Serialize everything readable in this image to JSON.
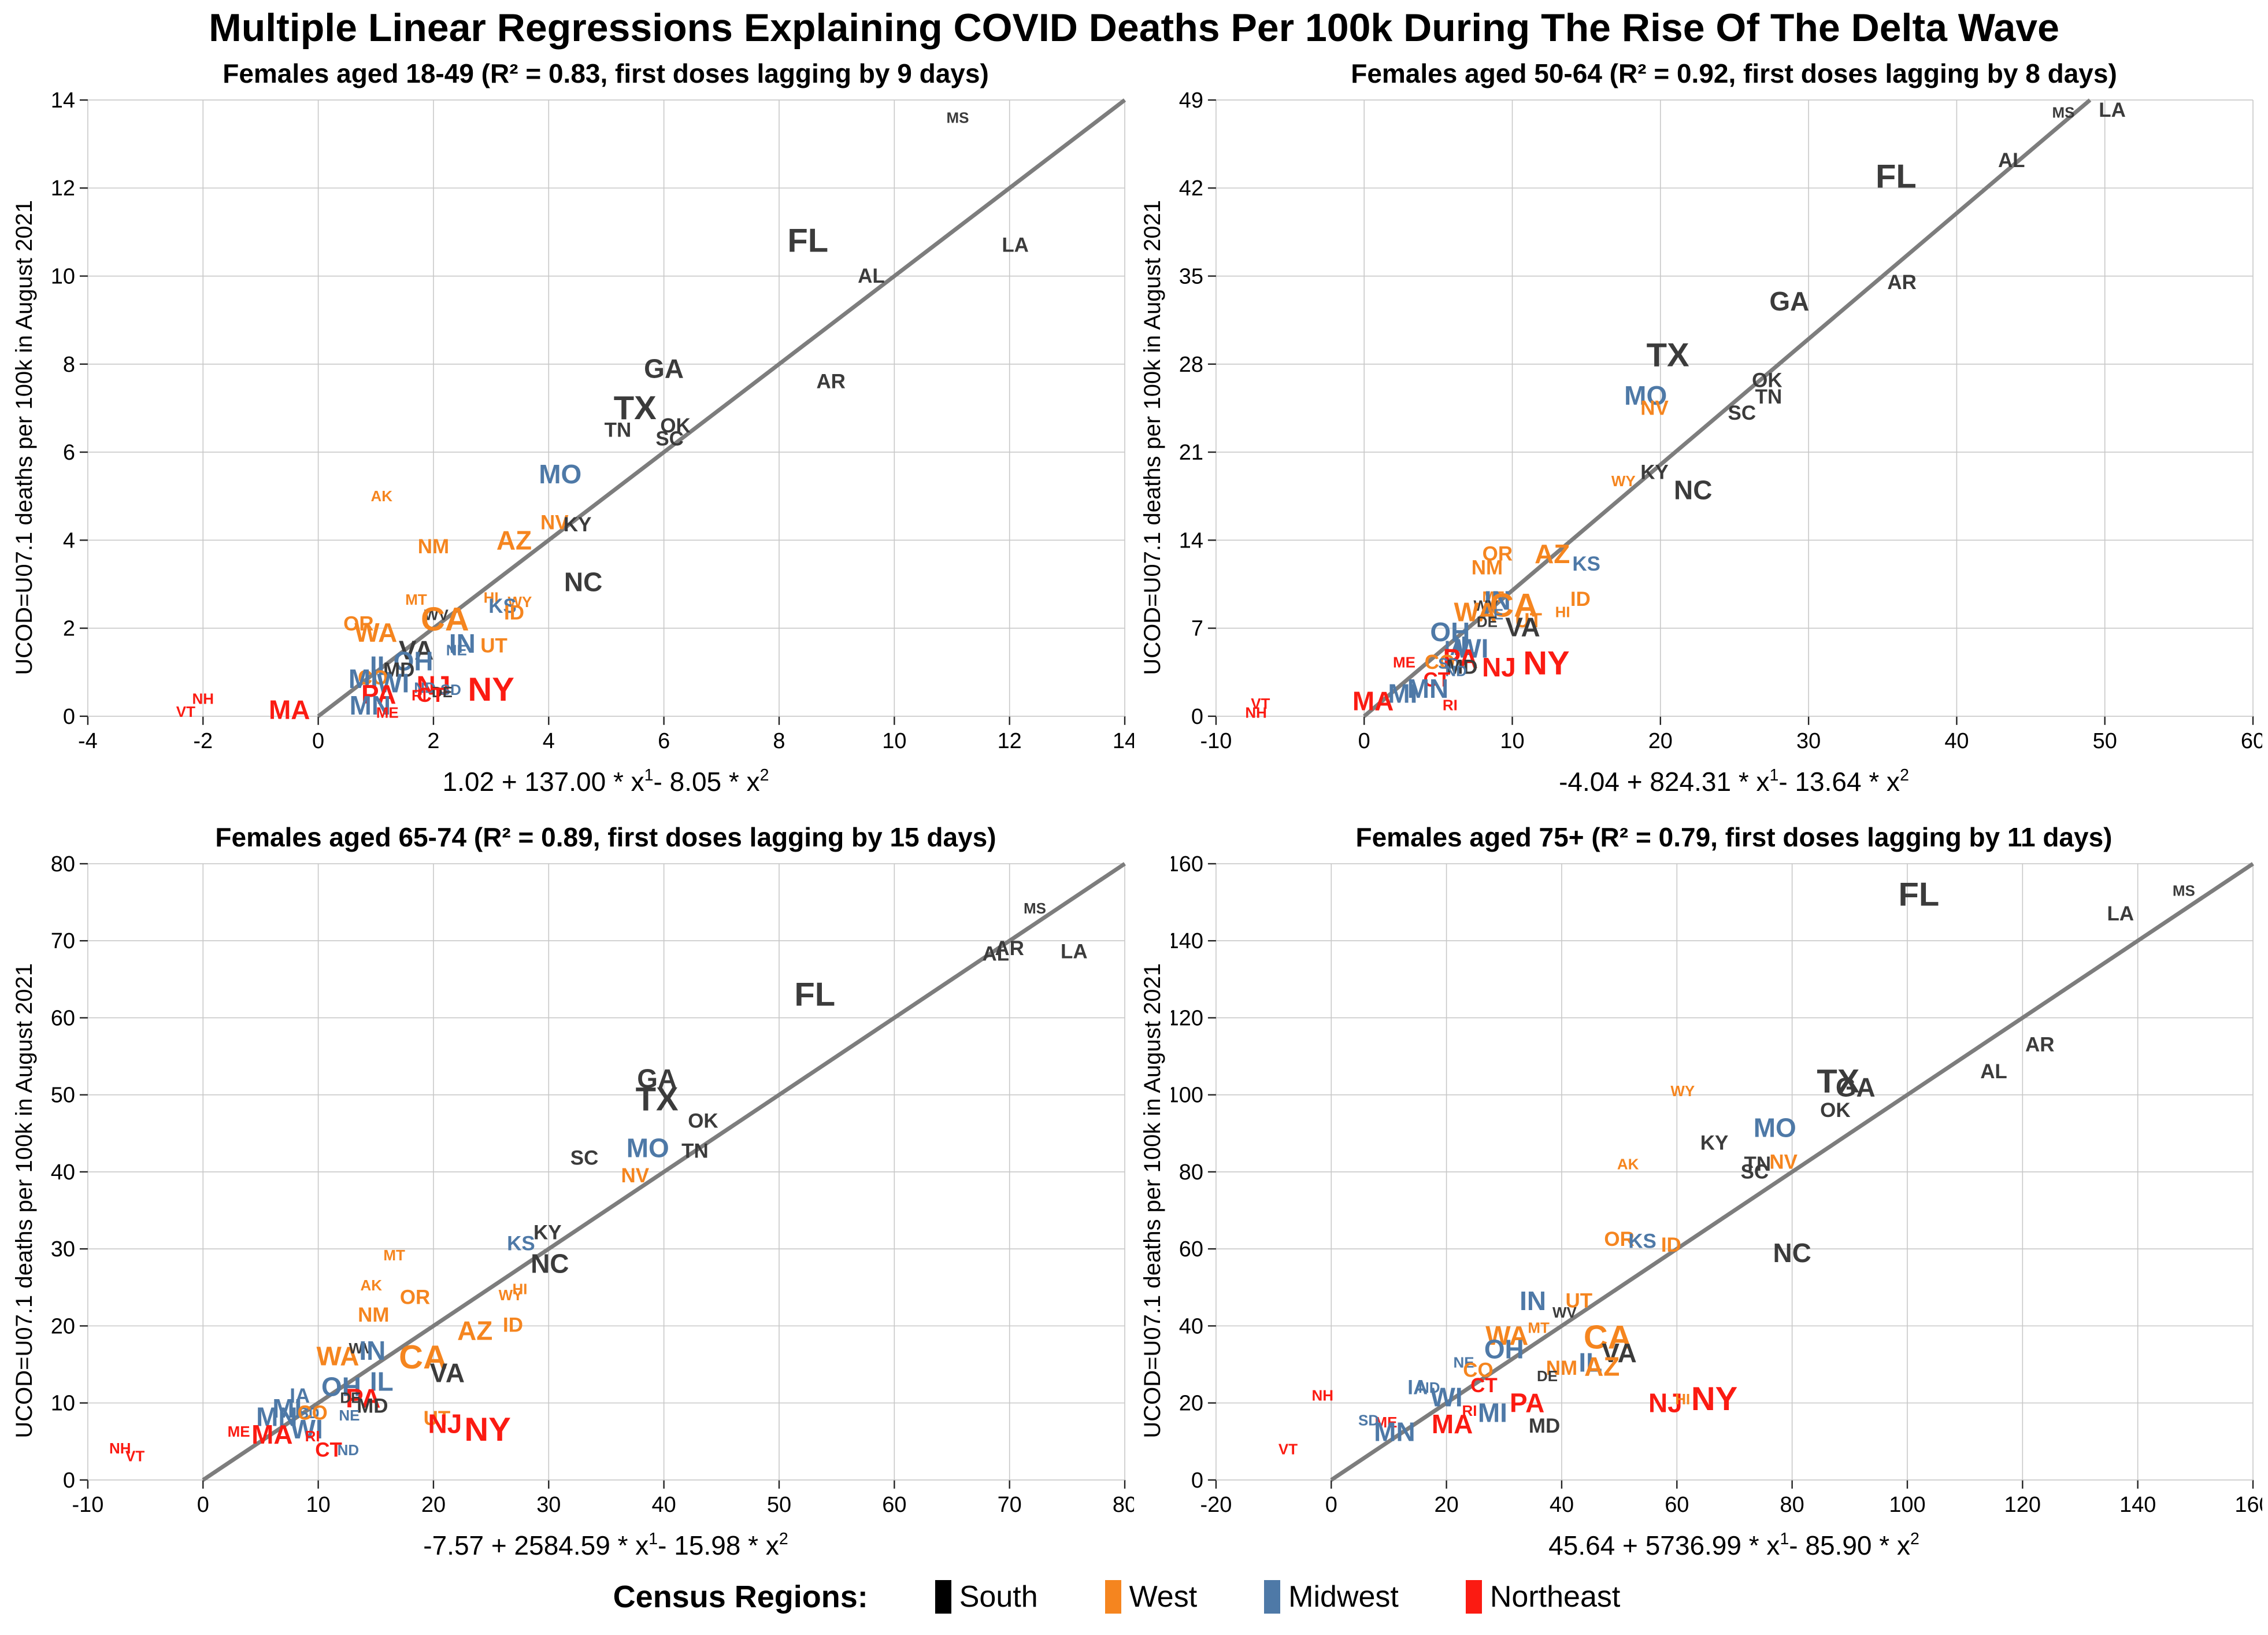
{
  "page_title": "Multiple Linear Regressions Explaining COVID Deaths Per 100k During The Rise Of The Delta Wave",
  "y_axis_label": "UCOD=U07.1 deaths per 100k in August 2021",
  "legend": {
    "title": "Census Regions:",
    "items": [
      {
        "label": "South",
        "color": "#000000"
      },
      {
        "label": "West",
        "color": "#f5851f"
      },
      {
        "label": "Midwest",
        "color": "#4e79a7"
      },
      {
        "label": "Northeast",
        "color": "#fb1b12"
      }
    ]
  },
  "region_colors": {
    "South": "#3b3b3b",
    "West": "#f5851f",
    "Midwest": "#4e79a7",
    "Northeast": "#fb1b12"
  },
  "state_regions": {
    "AL": "South",
    "AR": "South",
    "DE": "South",
    "FL": "South",
    "GA": "South",
    "KY": "South",
    "LA": "South",
    "MD": "South",
    "MS": "South",
    "NC": "South",
    "OK": "South",
    "SC": "South",
    "TN": "South",
    "TX": "South",
    "VA": "South",
    "WV": "South",
    "AK": "West",
    "AZ": "West",
    "CA": "West",
    "CO": "West",
    "HI": "West",
    "ID": "West",
    "MT": "West",
    "NM": "West",
    "NV": "West",
    "OR": "West",
    "UT": "West",
    "WA": "West",
    "WY": "West",
    "IA": "Midwest",
    "IL": "Midwest",
    "IN": "Midwest",
    "KS": "Midwest",
    "MI": "Midwest",
    "MN": "Midwest",
    "MO": "Midwest",
    "ND": "Midwest",
    "NE": "Midwest",
    "OH": "Midwest",
    "SD": "Midwest",
    "WI": "Midwest",
    "CT": "Northeast",
    "MA": "Northeast",
    "ME": "Northeast",
    "NH": "Northeast",
    "NJ": "Northeast",
    "NY": "Northeast",
    "PA": "Northeast",
    "RI": "Northeast",
    "VT": "Northeast"
  },
  "state_sizes": {
    "CA": 4,
    "TX": 4,
    "FL": 4,
    "NY": 4,
    "PA": 3,
    "IL": 3,
    "OH": 3,
    "GA": 3,
    "NC": 3,
    "MI": 3,
    "NJ": 3,
    "VA": 3,
    "WA": 3,
    "AZ": 3,
    "MA": 3,
    "IN": 3,
    "MO": 3,
    "MN": 3,
    "WI": 3,
    "TN": 2,
    "MD": 2,
    "CO": 2,
    "SC": 2,
    "AL": 2,
    "LA": 2,
    "KY": 2,
    "OR": 2,
    "OK": 2,
    "CT": 2,
    "UT": 2,
    "NV": 2,
    "NM": 2,
    "KS": 2,
    "ID": 2,
    "AR": 2,
    "IA": 2,
    "MS": 1,
    "WV": 1,
    "NE": 1,
    "SD": 1,
    "ND": 1,
    "MT": 1,
    "WY": 1,
    "AK": 1,
    "HI": 1,
    "DE": 1,
    "RI": 1,
    "ME": 1,
    "NH": 1,
    "VT": 1
  },
  "chart_data": [
    {
      "type": "scatter",
      "title": "Females aged 18-49 (R² = 0.83, first doses lagging by 9 days)",
      "formula": {
        "p1": "1.02 + 137.00 * x",
        "s1": "1",
        "p2": " - 8.05 * x",
        "s2": "2"
      },
      "xlim": [
        -4,
        14
      ],
      "ylim": [
        0,
        14
      ],
      "xticks": [
        -4,
        -2,
        0,
        2,
        4,
        6,
        8,
        10,
        12,
        14
      ],
      "yticks": [
        0,
        2,
        4,
        6,
        8,
        10,
        12,
        14
      ],
      "line": [
        [
          0,
          0
        ],
        [
          14,
          14
        ]
      ],
      "points": [
        [
          "MS",
          11.1,
          13.6
        ],
        [
          "FL",
          8.5,
          10.8
        ],
        [
          "LA",
          12.1,
          10.7
        ],
        [
          "AL",
          9.6,
          10.0
        ],
        [
          "GA",
          6.0,
          7.9
        ],
        [
          "AR",
          8.9,
          7.6
        ],
        [
          "TX",
          5.5,
          7.0
        ],
        [
          "TN",
          5.2,
          6.5
        ],
        [
          "OK",
          6.2,
          6.6
        ],
        [
          "SC",
          6.1,
          6.3
        ],
        [
          "MO",
          4.2,
          5.5
        ],
        [
          "AK",
          1.1,
          5.0
        ],
        [
          "NV",
          4.1,
          4.4
        ],
        [
          "KY",
          4.5,
          4.35
        ],
        [
          "AZ",
          3.4,
          4.0
        ],
        [
          "NM",
          2.0,
          3.85
        ],
        [
          "NC",
          4.6,
          3.05
        ],
        [
          "MT",
          1.7,
          2.65
        ],
        [
          "HI",
          3.0,
          2.7
        ],
        [
          "WY",
          3.5,
          2.6
        ],
        [
          "KS",
          3.2,
          2.5
        ],
        [
          "ID",
          3.4,
          2.35
        ],
        [
          "WV",
          2.05,
          2.3
        ],
        [
          "CA",
          2.2,
          2.2
        ],
        [
          "OR",
          0.7,
          2.1
        ],
        [
          "WA",
          1.0,
          1.9
        ],
        [
          "IN",
          2.5,
          1.65
        ],
        [
          "UT",
          3.05,
          1.6
        ],
        [
          "VA",
          1.7,
          1.5
        ],
        [
          "NE",
          2.4,
          1.5
        ],
        [
          "OH",
          1.65,
          1.25
        ],
        [
          "IL",
          1.1,
          1.15
        ],
        [
          "MD",
          1.4,
          1.05
        ],
        [
          "CO",
          0.95,
          0.87
        ],
        [
          "MI",
          0.78,
          0.85
        ],
        [
          "WI",
          1.3,
          0.75
        ],
        [
          "NJ",
          2.0,
          0.7
        ],
        [
          "ND",
          1.85,
          0.65
        ],
        [
          "SD",
          2.3,
          0.6
        ],
        [
          "NY",
          3.0,
          0.6
        ],
        [
          "DE",
          2.15,
          0.55
        ],
        [
          "PA",
          1.05,
          0.5
        ],
        [
          "CT",
          1.95,
          0.48
        ],
        [
          "RI",
          1.75,
          0.48
        ],
        [
          "MN",
          0.9,
          0.25
        ],
        [
          "MA",
          -0.5,
          0.15
        ],
        [
          "ME",
          1.2,
          0.08
        ],
        [
          "NH",
          -2.0,
          0.4
        ],
        [
          "VT",
          -2.3,
          0.1
        ]
      ]
    },
    {
      "type": "scatter",
      "title": "Females aged 50-64 (R² = 0.92, first doses lagging by 8 days)",
      "formula": {
        "p1": "-4.04 + 824.31 * x",
        "s1": "1",
        "p2": " - 13.64 * x",
        "s2": "2"
      },
      "xlim": [
        -10,
        60
      ],
      "ylim": [
        0,
        49
      ],
      "xticks": [
        -10,
        0,
        10,
        20,
        30,
        40,
        50,
        60
      ],
      "yticks": [
        0,
        7,
        14,
        21,
        28,
        35,
        42,
        49
      ],
      "line": [
        [
          0,
          0
        ],
        [
          49,
          49
        ]
      ],
      "points": [
        [
          "MS",
          47.2,
          48.0
        ],
        [
          "LA",
          50.5,
          48.2
        ],
        [
          "AL",
          43.7,
          44.2
        ],
        [
          "FL",
          35.9,
          42.9
        ],
        [
          "AR",
          36.3,
          34.5
        ],
        [
          "GA",
          28.7,
          33.0
        ],
        [
          "TX",
          20.5,
          28.7
        ],
        [
          "OK",
          27.2,
          26.7
        ],
        [
          "TN",
          27.3,
          25.4
        ],
        [
          "SC",
          25.5,
          24.1
        ],
        [
          "MO",
          19.0,
          25.5
        ],
        [
          "NV",
          19.6,
          24.5
        ],
        [
          "KY",
          19.6,
          19.4
        ],
        [
          "WY",
          17.5,
          18.7
        ],
        [
          "NC",
          22.2,
          18.0
        ],
        [
          "KS",
          15.0,
          12.1
        ],
        [
          "AZ",
          12.7,
          12.9
        ],
        [
          "OR",
          9.0,
          12.9
        ],
        [
          "NM",
          8.3,
          11.8
        ],
        [
          "ID",
          14.6,
          9.3
        ],
        [
          "HI",
          13.4,
          8.3
        ],
        [
          "MT",
          8.7,
          9.5
        ],
        [
          "IN",
          9.0,
          9.2
        ],
        [
          "WV",
          8.2,
          8.8
        ],
        [
          "CA",
          10.1,
          8.8
        ],
        [
          "NE",
          8.7,
          8.1
        ],
        [
          "WA",
          7.5,
          8.3
        ],
        [
          "DE",
          8.3,
          7.5
        ],
        [
          "UT",
          11.1,
          7.6
        ],
        [
          "VA",
          10.7,
          7.1
        ],
        [
          "OH",
          5.8,
          6.7
        ],
        [
          "IA",
          6.1,
          5.4
        ],
        [
          "IL",
          6.8,
          5.6
        ],
        [
          "WI",
          7.3,
          5.4
        ],
        [
          "PA",
          6.5,
          4.6
        ],
        [
          "CO",
          5.1,
          4.3
        ],
        [
          "SD",
          5.7,
          4.2
        ],
        [
          "MD",
          6.6,
          3.9
        ],
        [
          "ND",
          6.2,
          3.6
        ],
        [
          "CT",
          4.9,
          2.9
        ],
        [
          "NJ",
          9.1,
          3.9
        ],
        [
          "NY",
          12.3,
          4.2
        ],
        [
          "ME",
          2.7,
          4.3
        ],
        [
          "MI",
          2.6,
          1.8
        ],
        [
          "MN",
          4.3,
          2.2
        ],
        [
          "MA",
          0.6,
          1.2
        ],
        [
          "RI",
          5.8,
          0.9
        ],
        [
          "VT",
          -7.0,
          1.0
        ],
        [
          "NH",
          -7.3,
          0.3
        ]
      ]
    },
    {
      "type": "scatter",
      "title": "Females aged 65-74 (R² = 0.89, first doses lagging by 15 days)",
      "formula": {
        "p1": "-7.57 + 2584.59 * x",
        "s1": "1",
        "p2": " - 15.98 * x",
        "s2": "2"
      },
      "xlim": [
        -10,
        80
      ],
      "ylim": [
        0,
        80
      ],
      "xticks": [
        -10,
        0,
        10,
        20,
        30,
        40,
        50,
        60,
        70,
        80
      ],
      "yticks": [
        0,
        10,
        20,
        30,
        40,
        50,
        60,
        70,
        80
      ],
      "line": [
        [
          0,
          0
        ],
        [
          80,
          80
        ]
      ],
      "points": [
        [
          "MS",
          72.2,
          74.2
        ],
        [
          "AR",
          70.0,
          69.0
        ],
        [
          "AL",
          68.8,
          68.3
        ],
        [
          "LA",
          75.6,
          68.6
        ],
        [
          "FL",
          53.1,
          63.0
        ],
        [
          "GA",
          39.4,
          52.1
        ],
        [
          "TX",
          39.4,
          49.4
        ],
        [
          "OK",
          43.4,
          46.6
        ],
        [
          "MO",
          38.6,
          43.1
        ],
        [
          "TN",
          42.7,
          42.7
        ],
        [
          "SC",
          33.1,
          41.8
        ],
        [
          "NV",
          37.5,
          39.5
        ],
        [
          "KY",
          29.9,
          32.1
        ],
        [
          "KS",
          27.6,
          30.7
        ],
        [
          "NC",
          30.1,
          28.1
        ],
        [
          "MT",
          16.6,
          29.2
        ],
        [
          "AK",
          14.6,
          25.3
        ],
        [
          "HI",
          27.5,
          24.8
        ],
        [
          "WY",
          26.7,
          24.0
        ],
        [
          "OR",
          18.4,
          23.7
        ],
        [
          "NM",
          14.8,
          21.4
        ],
        [
          "ID",
          26.9,
          20.1
        ],
        [
          "AZ",
          23.6,
          19.4
        ],
        [
          "WA",
          11.7,
          16.1
        ],
        [
          "WV",
          13.7,
          17.1
        ],
        [
          "IN",
          14.7,
          16.8
        ],
        [
          "CA",
          19.1,
          15.9
        ],
        [
          "VA",
          21.2,
          13.9
        ],
        [
          "IL",
          15.5,
          12.8
        ],
        [
          "OH",
          12.0,
          12.1
        ],
        [
          "PA",
          13.9,
          10.6
        ],
        [
          "IA",
          8.4,
          10.9
        ],
        [
          "DE",
          12.8,
          10.7
        ],
        [
          "MD",
          14.7,
          9.6
        ],
        [
          "MI",
          7.3,
          9.3
        ],
        [
          "MN",
          6.4,
          8.2
        ],
        [
          "SD",
          9.2,
          8.7
        ],
        [
          "CO",
          9.5,
          8.7
        ],
        [
          "NE",
          12.7,
          8.4
        ],
        [
          "UT",
          20.3,
          8.0
        ],
        [
          "WI",
          9.0,
          6.6
        ],
        [
          "NJ",
          21.0,
          7.3
        ],
        [
          "NY",
          24.7,
          6.5
        ],
        [
          "MA",
          6.0,
          5.9
        ],
        [
          "ME",
          3.1,
          6.3
        ],
        [
          "RI",
          9.5,
          5.7
        ],
        [
          "CT",
          10.9,
          3.9
        ],
        [
          "ND",
          12.6,
          3.9
        ],
        [
          "NH",
          -7.2,
          4.1
        ],
        [
          "VT",
          -5.9,
          3.1
        ]
      ]
    },
    {
      "type": "scatter",
      "title": "Females aged 75+ (R² = 0.79, first doses lagging by 11 days)",
      "formula": {
        "p1": "45.64 + 5736.99 * x",
        "s1": "1",
        "p2": " - 85.90 * x",
        "s2": "2"
      },
      "xlim": [
        -20,
        160
      ],
      "ylim": [
        0,
        160
      ],
      "xticks": [
        -20,
        0,
        20,
        40,
        60,
        80,
        100,
        120,
        140,
        160
      ],
      "yticks": [
        0,
        20,
        40,
        60,
        80,
        100,
        120,
        140,
        160
      ],
      "line": [
        [
          0,
          0
        ],
        [
          160,
          160
        ]
      ],
      "points": [
        [
          "MS",
          148,
          153
        ],
        [
          "FL",
          102,
          152
        ],
        [
          "LA",
          137,
          147
        ],
        [
          "AR",
          123,
          113
        ],
        [
          "AL",
          115,
          106
        ],
        [
          "TX",
          88,
          103.5
        ],
        [
          "GA",
          91,
          102
        ],
        [
          "OK",
          87.5,
          96
        ],
        [
          "WY",
          61,
          101
        ],
        [
          "MO",
          77,
          91.5
        ],
        [
          "KY",
          66.5,
          87.5
        ],
        [
          "AK",
          51.5,
          82
        ],
        [
          "TN",
          74,
          82
        ],
        [
          "NV",
          78.5,
          82.5
        ],
        [
          "SC",
          73.5,
          80
        ],
        [
          "NC",
          80,
          59
        ],
        [
          "OR",
          50,
          62.5
        ],
        [
          "KS",
          54,
          62
        ],
        [
          "ID",
          59,
          61
        ],
        [
          "IN",
          35,
          46.5
        ],
        [
          "UT",
          43,
          46.5
        ],
        [
          "WV",
          40.5,
          43.5
        ],
        [
          "MT",
          36,
          39.5
        ],
        [
          "WA",
          30.5,
          37.5
        ],
        [
          "CA",
          48,
          37
        ],
        [
          "OH",
          30,
          34
        ],
        [
          "VA",
          50,
          33
        ],
        [
          "NE",
          23,
          30.5
        ],
        [
          "IL",
          45,
          30.5
        ],
        [
          "AZ",
          47,
          29.5
        ],
        [
          "NM",
          40,
          29
        ],
        [
          "CO",
          25.5,
          28.5
        ],
        [
          "DE",
          37.5,
          27
        ],
        [
          "CT",
          26.5,
          24.5
        ],
        [
          "IA",
          15,
          24
        ],
        [
          "ND",
          17,
          24
        ],
        [
          "NH",
          -1.5,
          22
        ],
        [
          "WI",
          20,
          21.5
        ],
        [
          "NJ",
          58,
          20
        ],
        [
          "HI",
          61,
          21
        ],
        [
          "NY",
          66.5,
          21
        ],
        [
          "PA",
          34,
          20
        ],
        [
          "MI",
          28,
          17.5
        ],
        [
          "RI",
          24,
          18
        ],
        [
          "MD",
          37,
          14
        ],
        [
          "MA",
          21,
          14.5
        ],
        [
          "ME",
          9.5,
          15
        ],
        [
          "SD",
          6.5,
          15.5
        ],
        [
          "MN",
          11,
          12.5
        ],
        [
          "VT",
          -7.5,
          8
        ]
      ]
    }
  ]
}
